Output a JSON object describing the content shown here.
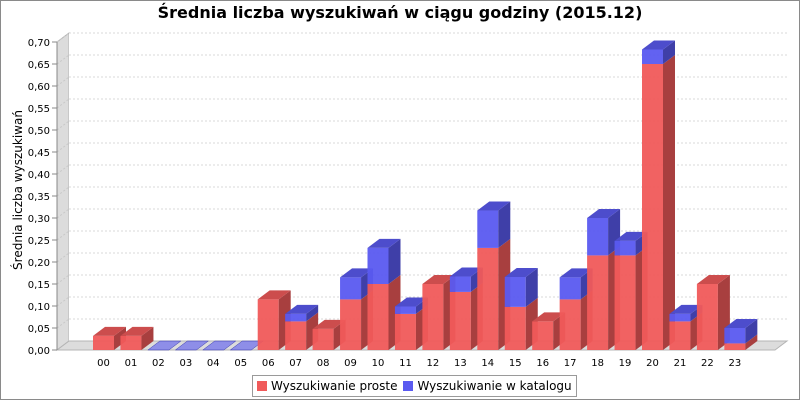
{
  "chart_data": {
    "type": "bar",
    "stacked": true,
    "title": "Średnia liczba wyszukiwań w ciągu godziny (2015.12)",
    "xlabel": "",
    "ylabel": "Średnia liczba wyszukiwań",
    "ylim": [
      0,
      0.7
    ],
    "yticks": [
      "0,00",
      "0,05",
      "0,10",
      "0,15",
      "0,20",
      "0,25",
      "0,30",
      "0,35",
      "0,40",
      "0,45",
      "0,50",
      "0,55",
      "0,60",
      "0,65",
      "0,70"
    ],
    "categories": [
      "00",
      "01",
      "02",
      "03",
      "04",
      "05",
      "06",
      "07",
      "08",
      "09",
      "10",
      "11",
      "12",
      "13",
      "14",
      "15",
      "16",
      "17",
      "18",
      "19",
      "20",
      "21",
      "22",
      "23"
    ],
    "series": [
      {
        "name": "Wyszukiwanie proste",
        "color": "#f05a5a",
        "values": [
          0.032,
          0.032,
          0,
          0,
          0,
          0,
          0.115,
          0.065,
          0.048,
          0.115,
          0.15,
          0.082,
          0.15,
          0.132,
          0.232,
          0.098,
          0.065,
          0.115,
          0.215,
          0.215,
          0.65,
          0.065,
          0.15,
          0.015
        ]
      },
      {
        "name": "Wyszukiwanie w katalogu",
        "color": "#5a5af0",
        "values": [
          0,
          0,
          0,
          0,
          0,
          0,
          0,
          0.017,
          0,
          0.05,
          0.082,
          0.017,
          0,
          0.035,
          0.085,
          0.068,
          0,
          0.05,
          0.085,
          0.033,
          0.033,
          0.017,
          0,
          0.035
        ]
      }
    ],
    "grid": true,
    "legend_position": "bottom",
    "projection": "3d"
  }
}
